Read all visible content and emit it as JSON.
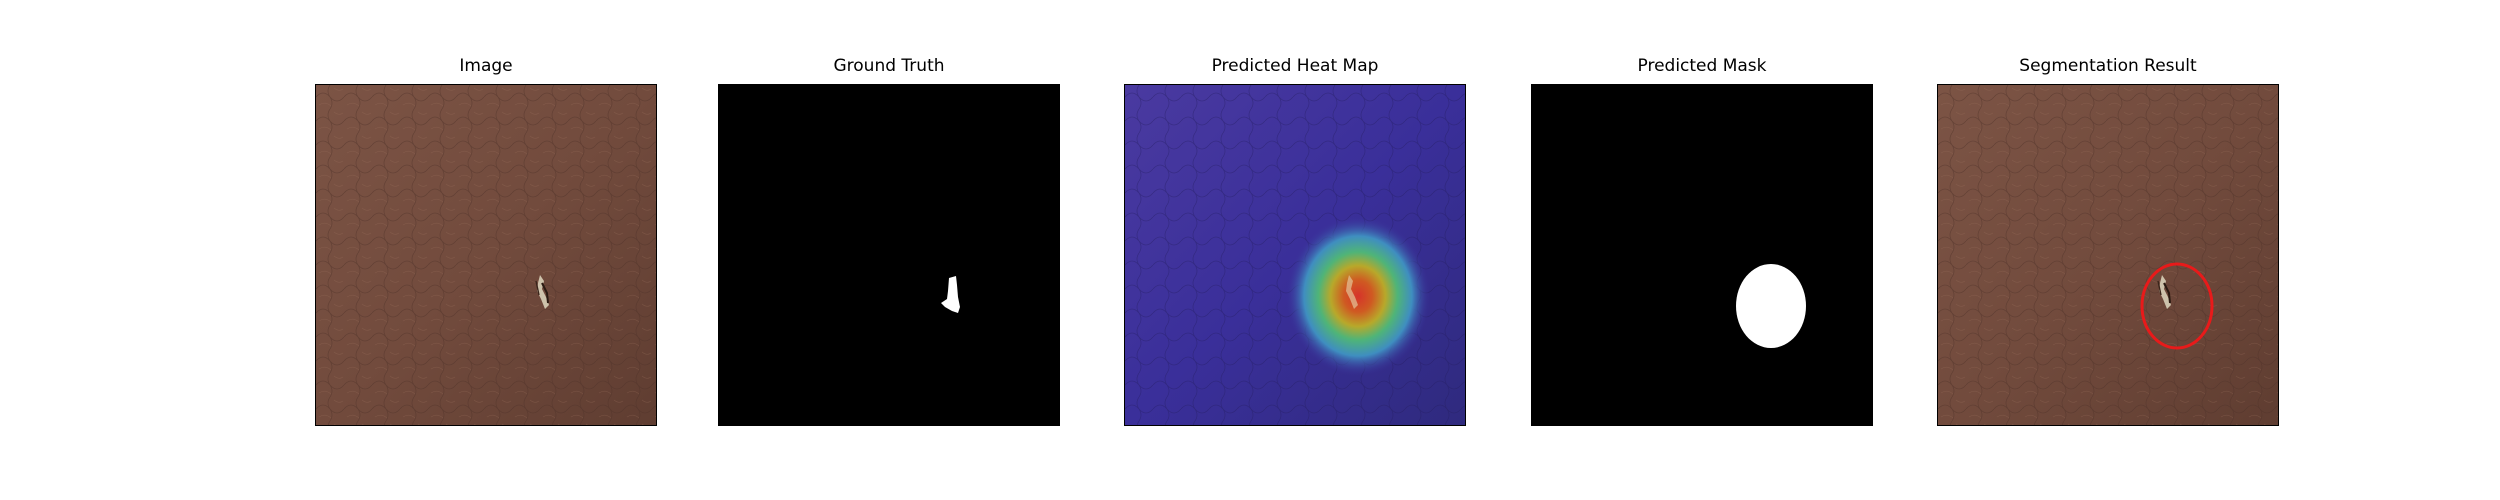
{
  "figure": {
    "panels": [
      {
        "id": "image",
        "title": "Image"
      },
      {
        "id": "ground-truth",
        "title": "Ground Truth"
      },
      {
        "id": "heatmap",
        "title": "Predicted Heat Map"
      },
      {
        "id": "mask",
        "title": "Predicted Mask"
      },
      {
        "id": "segmentation",
        "title": "Segmentation Result"
      }
    ]
  },
  "colors": {
    "leather_light": "#7a5243",
    "leather_dark": "#5e3c30",
    "mask_background": "#000000",
    "mask_foreground": "#ffffff",
    "heatmap_low": "#3b2fa8",
    "heatmap_high": "#d4302a",
    "contour": "#e81a1a"
  }
}
